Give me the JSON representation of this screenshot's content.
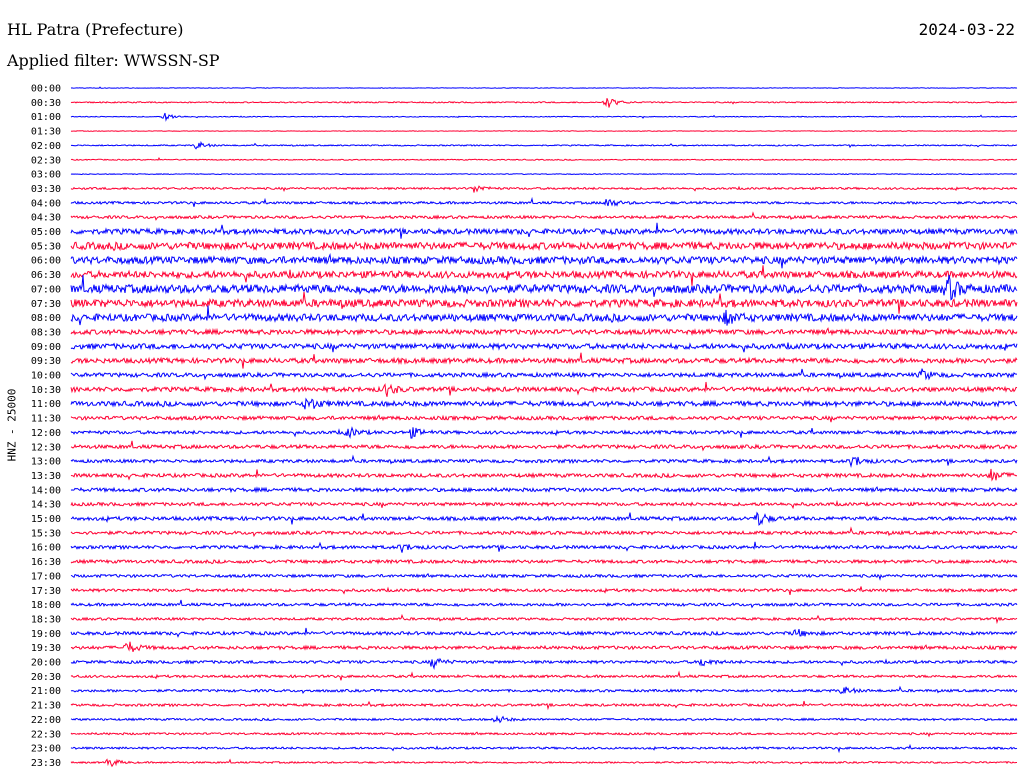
{
  "header": {
    "station": "HL Patra (Prefecture)",
    "date": "2024-03-22",
    "filter": "Applied filter: WWSSN-SP"
  },
  "chart_data": {
    "type": "line",
    "ylabel": "HNZ - 25000",
    "xlabel": "",
    "colors": [
      "#0000ff",
      "#ff0033"
    ],
    "row_labels": [
      "00:00",
      "00:30",
      "01:00",
      "01:30",
      "02:00",
      "02:30",
      "03:00",
      "03:30",
      "04:00",
      "04:30",
      "05:00",
      "05:30",
      "06:00",
      "06:30",
      "07:00",
      "07:30",
      "08:00",
      "08:30",
      "09:00",
      "09:30",
      "10:00",
      "10:30",
      "11:00",
      "11:30",
      "12:00",
      "12:30",
      "13:00",
      "13:30",
      "14:00",
      "14:30",
      "15:00",
      "15:30",
      "16:00",
      "16:30",
      "17:00",
      "17:30",
      "18:00",
      "18:30",
      "19:00",
      "19:30",
      "20:00",
      "20:30",
      "21:00",
      "21:30",
      "22:00",
      "22:30",
      "23:00",
      "23:30"
    ],
    "noise_level": [
      0.3,
      0.6,
      0.4,
      0.3,
      0.6,
      0.5,
      0.4,
      1.0,
      1.2,
      1.4,
      2.6,
      3.6,
      3.6,
      3.4,
      4.2,
      3.8,
      3.6,
      2.4,
      2.6,
      2.4,
      2.0,
      2.2,
      2.4,
      1.8,
      1.6,
      1.8,
      1.6,
      1.8,
      1.8,
      1.6,
      1.8,
      1.6,
      1.6,
      1.6,
      1.4,
      1.4,
      1.4,
      1.2,
      1.6,
      1.6,
      1.4,
      1.2,
      1.2,
      1.2,
      1.0,
      1.0,
      1.0,
      0.8
    ],
    "events": [
      {
        "row": 1,
        "minute": 17.0,
        "amplitude": 6
      },
      {
        "row": 2,
        "minute": 3.0,
        "amplitude": 4
      },
      {
        "row": 4,
        "minute": 4.0,
        "amplitude": 4
      },
      {
        "row": 7,
        "minute": 12.8,
        "amplitude": 4
      },
      {
        "row": 8,
        "minute": 17.0,
        "amplitude": 5
      },
      {
        "row": 14,
        "minute": 27.8,
        "amplitude": 12
      },
      {
        "row": 16,
        "minute": 20.8,
        "amplitude": 6
      },
      {
        "row": 20,
        "minute": 27.0,
        "amplitude": 5
      },
      {
        "row": 21,
        "minute": 10.0,
        "amplitude": 6
      },
      {
        "row": 22,
        "minute": 7.5,
        "amplitude": 7
      },
      {
        "row": 24,
        "minute": 8.8,
        "amplitude": 5
      },
      {
        "row": 24,
        "minute": 10.8,
        "amplitude": 5
      },
      {
        "row": 26,
        "minute": 24.8,
        "amplitude": 6
      },
      {
        "row": 27,
        "minute": 29.2,
        "amplitude": 6
      },
      {
        "row": 30,
        "minute": 21.8,
        "amplitude": 7
      },
      {
        "row": 32,
        "minute": 10.5,
        "amplitude": 4
      },
      {
        "row": 38,
        "minute": 23.0,
        "amplitude": 4
      },
      {
        "row": 39,
        "minute": 1.8,
        "amplitude": 6
      },
      {
        "row": 40,
        "minute": 11.5,
        "amplitude": 5
      },
      {
        "row": 40,
        "minute": 20.0,
        "amplitude": 4
      },
      {
        "row": 42,
        "minute": 24.5,
        "amplitude": 4
      },
      {
        "row": 44,
        "minute": 13.5,
        "amplitude": 4
      },
      {
        "row": 47,
        "minute": 1.2,
        "amplitude": 5
      }
    ]
  }
}
